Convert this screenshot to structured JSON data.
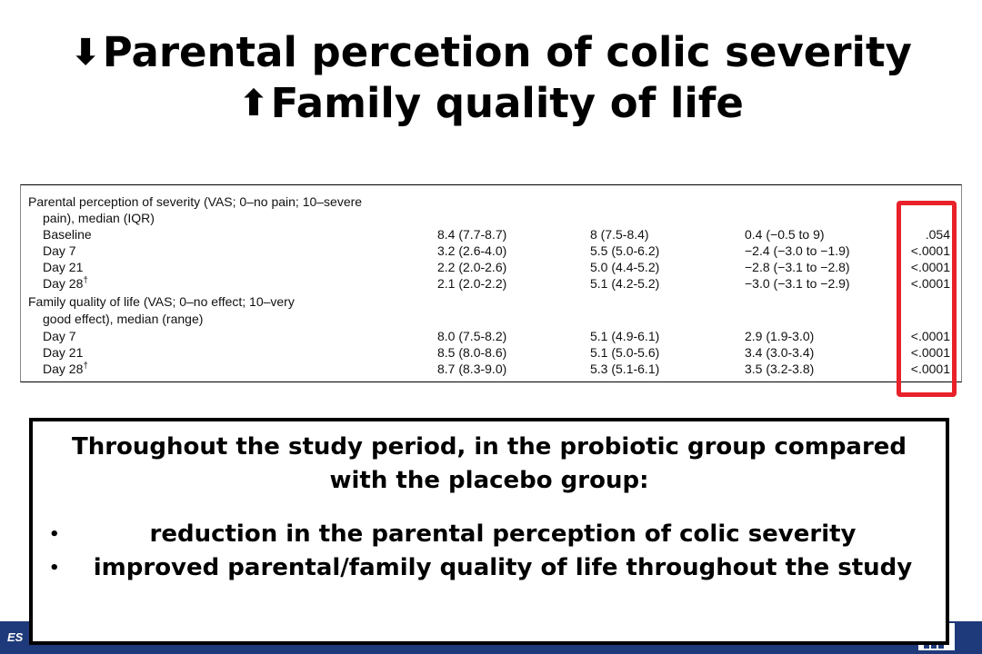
{
  "title": {
    "line1_arrow": "⬇",
    "line1_text": "Parental percetion of colic severity",
    "line2_arrow": "⬆",
    "line2_text": "Family quality of life"
  },
  "table": {
    "severity_header_1": "Parental perception of severity (VAS; 0–no pain; 10–severe",
    "severity_header_2": "pain), median (IQR)",
    "severity_rows": [
      {
        "label": "Baseline",
        "sup": "",
        "c1": "8.4 (7.7-8.7)",
        "c2": "8 (7.5-8.4)",
        "c3": "0.4 (−0.5 to 9)",
        "p": ".054"
      },
      {
        "label": "Day 7",
        "sup": "",
        "c1": "3.2 (2.6-4.0)",
        "c2": "5.5 (5.0-6.2)",
        "c3": "−2.4 (−3.0 to −1.9)",
        "p": "<.0001"
      },
      {
        "label": "Day 21",
        "sup": "",
        "c1": "2.2 (2.0-2.6)",
        "c2": "5.0 (4.4-5.2)",
        "c3": "−2.8 (−3.1 to −2.8)",
        "p": "<.0001"
      },
      {
        "label": "Day 28",
        "sup": "†",
        "c1": "2.1 (2.0-2.2)",
        "c2": "5.1 (4.2-5.2)",
        "c3": "−3.0 (−3.1 to −2.9)",
        "p": "<.0001"
      }
    ],
    "qol_header_1": "Family quality of life (VAS; 0–no effect; 10–very",
    "qol_header_2": "good effect), median (range)",
    "qol_rows": [
      {
        "label": "Day 7",
        "sup": "",
        "c1": "8.0 (7.5-8.2)",
        "c2": "5.1 (4.9-6.1)",
        "c3": "2.9 (1.9-3.0)",
        "p": "<.0001"
      },
      {
        "label": "Day 21",
        "sup": "",
        "c1": "8.5 (8.0-8.6)",
        "c2": "5.1 (5.0-5.6)",
        "c3": "3.4 (3.0-3.4)",
        "p": "<.0001"
      },
      {
        "label": "Day 28",
        "sup": "†",
        "c1": "8.7 (8.3-9.0)",
        "c2": "5.3 (5.1-6.1)",
        "c3": "3.5 (3.2-3.8)",
        "p": "<.0001"
      }
    ]
  },
  "summary": {
    "intro": "Throughout the study period, in the probiotic group compared with the placebo group:",
    "bullet_glyph": "•",
    "bullets": [
      "reduction in the parental perception of colic severity",
      "improved parental/family quality of life throughout the study"
    ]
  },
  "footer": {
    "text": "ES"
  },
  "colors": {
    "highlight_box": "#e8212a",
    "footer_bar": "#1f3a7a"
  }
}
